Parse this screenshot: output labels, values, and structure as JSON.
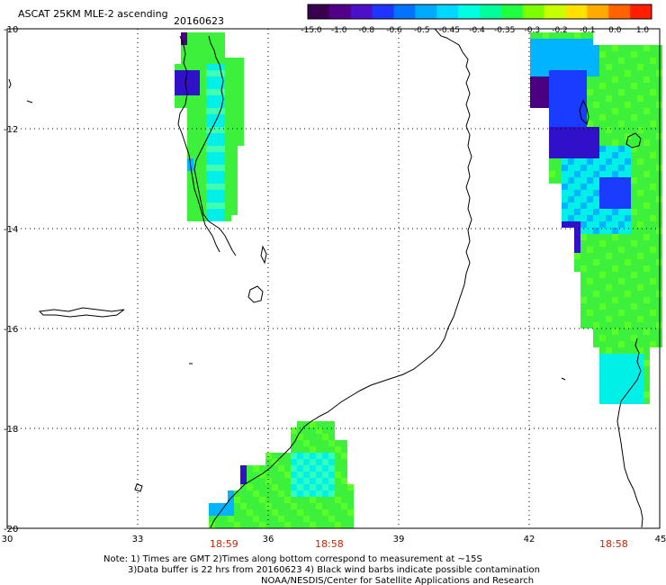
{
  "header": {
    "title": "ASCAT 25KM MLE-2 ascending",
    "date": "20160623"
  },
  "colorbar": {
    "tick_labels": [
      "-15.0",
      "-1.0",
      "-0.8",
      "-0.6",
      "-0.5",
      "-0.45",
      "-0.4",
      "-0.35",
      "-0.3",
      "-0.2",
      "-0.1",
      "0.0",
      "1.0"
    ],
    "colors": [
      "#3a0050",
      "#52008a",
      "#4b10c8",
      "#1e34ff",
      "#0074ff",
      "#00aaff",
      "#00d8ff",
      "#00ffe0",
      "#00ff9a",
      "#20ff40",
      "#7cff00",
      "#c8ff00",
      "#ffe000",
      "#ffaa00",
      "#ff6400",
      "#ff1e00"
    ]
  },
  "map": {
    "lon_labels": [
      "30",
      "33",
      "36",
      "39",
      "42",
      "45"
    ],
    "lat_labels": [
      "-10",
      "-12",
      "-14",
      "-16",
      "-18",
      "-20"
    ],
    "lon_range": [
      30,
      45
    ],
    "lat_range": [
      -10,
      -20
    ],
    "grid": true,
    "swath_times": [
      "18:59",
      "18:58",
      "18:58"
    ],
    "time_color": "#cc2200",
    "coastline_color": "#000000"
  },
  "notes": {
    "line1": "Note: 1) Times are GMT 2)Times along bottom correspond to measurement at ~15S",
    "line2": "3)Data buffer is 22 hrs from 20160623 4) Black wind barbs indicate possible contamination",
    "line3": "NOAA/NESDIS/Center for Satellite Applications and Research"
  }
}
